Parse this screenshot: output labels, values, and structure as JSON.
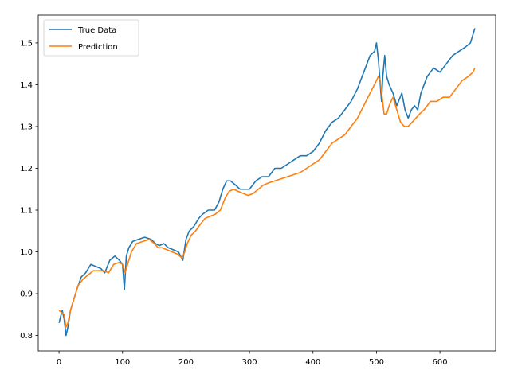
{
  "chart_data": {
    "type": "line",
    "title": "",
    "xlabel": "",
    "ylabel": "",
    "xlim": [
      -32.75,
      687.75
    ],
    "ylim": [
      0.763,
      1.5665
    ],
    "xticks": [
      0,
      100,
      200,
      300,
      400,
      500,
      600
    ],
    "xtick_labels": [
      "0",
      "100",
      "200",
      "300",
      "400",
      "500",
      "600"
    ],
    "yticks": [
      0.8,
      0.9,
      1.0,
      1.1,
      1.2,
      1.3,
      1.4,
      1.5
    ],
    "ytick_labels": [
      "0.8",
      "0.9",
      "1.0",
      "1.1",
      "1.2",
      "1.3",
      "1.4",
      "1.5"
    ],
    "grid": false,
    "legend_position": "upper-left",
    "series": [
      {
        "name": "True Data",
        "color": "#1f77b4",
        "x": [
          0,
          5,
          8,
          11,
          14,
          18,
          22,
          28,
          35,
          42,
          50,
          58,
          66,
          72,
          80,
          88,
          95,
          100,
          103,
          106,
          110,
          116,
          125,
          135,
          145,
          152,
          158,
          165,
          172,
          180,
          188,
          195,
          200,
          205,
          212,
          220,
          226,
          235,
          245,
          252,
          258,
          264,
          270,
          278,
          285,
          292,
          300,
          310,
          320,
          330,
          340,
          350,
          360,
          370,
          380,
          390,
          400,
          410,
          420,
          430,
          440,
          450,
          460,
          470,
          480,
          490,
          497,
          500,
          503,
          506,
          508,
          510,
          513,
          516,
          520,
          526,
          532,
          540,
          545,
          550,
          555,
          560,
          565,
          570,
          580,
          590,
          600,
          610,
          620,
          630,
          640,
          648,
          652,
          655
        ],
        "y": [
          0.83,
          0.86,
          0.84,
          0.8,
          0.82,
          0.86,
          0.88,
          0.91,
          0.94,
          0.95,
          0.97,
          0.965,
          0.96,
          0.95,
          0.98,
          0.99,
          0.98,
          0.97,
          0.91,
          0.99,
          1.01,
          1.025,
          1.03,
          1.035,
          1.03,
          1.02,
          1.015,
          1.02,
          1.01,
          1.005,
          1.0,
          0.98,
          1.03,
          1.05,
          1.06,
          1.08,
          1.09,
          1.1,
          1.1,
          1.12,
          1.15,
          1.17,
          1.17,
          1.16,
          1.15,
          1.15,
          1.15,
          1.17,
          1.18,
          1.18,
          1.2,
          1.2,
          1.21,
          1.22,
          1.23,
          1.23,
          1.24,
          1.26,
          1.29,
          1.31,
          1.32,
          1.34,
          1.36,
          1.39,
          1.43,
          1.47,
          1.48,
          1.5,
          1.46,
          1.4,
          1.36,
          1.42,
          1.47,
          1.42,
          1.4,
          1.38,
          1.35,
          1.38,
          1.34,
          1.32,
          1.34,
          1.35,
          1.34,
          1.38,
          1.42,
          1.44,
          1.43,
          1.45,
          1.47,
          1.48,
          1.49,
          1.5,
          1.52,
          1.535
        ]
      },
      {
        "name": "Prediction",
        "color": "#ff7f0e",
        "x": [
          0,
          4,
          8,
          11,
          14,
          18,
          24,
          30,
          38,
          46,
          54,
          62,
          70,
          78,
          86,
          95,
          100,
          104,
          108,
          114,
          122,
          132,
          142,
          150,
          156,
          162,
          170,
          178,
          186,
          194,
          198,
          202,
          208,
          215,
          222,
          230,
          238,
          246,
          254,
          262,
          268,
          275,
          282,
          290,
          298,
          306,
          314,
          322,
          330,
          340,
          350,
          360,
          370,
          380,
          390,
          400,
          410,
          420,
          430,
          440,
          450,
          460,
          470,
          480,
          490,
          500,
          503,
          506,
          509,
          512,
          516,
          520,
          526,
          532,
          538,
          544,
          550,
          556,
          562,
          568,
          575,
          585,
          595,
          605,
          615,
          625,
          635,
          645,
          652,
          655
        ],
        "y": [
          0.86,
          0.855,
          0.85,
          0.82,
          0.83,
          0.86,
          0.89,
          0.92,
          0.935,
          0.945,
          0.955,
          0.955,
          0.955,
          0.95,
          0.97,
          0.975,
          0.97,
          0.95,
          0.97,
          1.0,
          1.02,
          1.025,
          1.03,
          1.02,
          1.01,
          1.01,
          1.005,
          1.0,
          0.995,
          0.985,
          1.0,
          1.02,
          1.04,
          1.05,
          1.065,
          1.08,
          1.085,
          1.09,
          1.1,
          1.13,
          1.145,
          1.15,
          1.145,
          1.14,
          1.135,
          1.14,
          1.15,
          1.16,
          1.165,
          1.17,
          1.175,
          1.18,
          1.185,
          1.19,
          1.2,
          1.21,
          1.22,
          1.24,
          1.26,
          1.27,
          1.28,
          1.3,
          1.32,
          1.35,
          1.38,
          1.41,
          1.42,
          1.41,
          1.37,
          1.33,
          1.33,
          1.35,
          1.37,
          1.34,
          1.31,
          1.3,
          1.3,
          1.31,
          1.32,
          1.33,
          1.34,
          1.36,
          1.36,
          1.37,
          1.37,
          1.39,
          1.41,
          1.42,
          1.43,
          1.44
        ]
      }
    ]
  }
}
